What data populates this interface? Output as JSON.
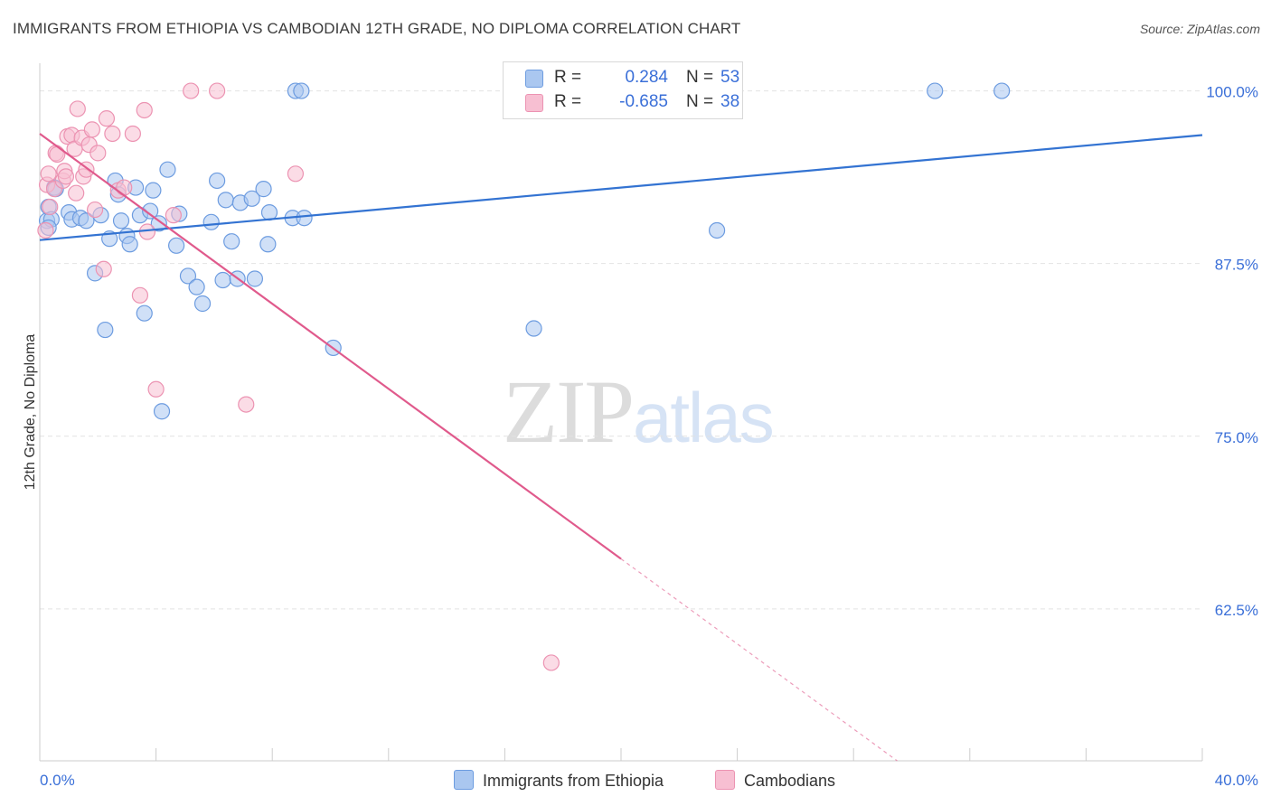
{
  "title": "IMMIGRANTS FROM ETHIOPIA VS CAMBODIAN 12TH GRADE, NO DIPLOMA CORRELATION CHART",
  "source": "Source: ZipAtlas.com",
  "watermark": {
    "zip": "ZIP",
    "atlas": "atlas"
  },
  "colors": {
    "blue_fill": "#aac7f0",
    "blue_stroke": "#6d9ce0",
    "blue_line": "#3373d2",
    "pink_fill": "#f7bfd2",
    "pink_stroke": "#ec93b2",
    "pink_line": "#e05a8c",
    "axis_text": "#3a6fd8",
    "grid": "#e2e2e2"
  },
  "legend": {
    "series": [
      {
        "r_label": "R =",
        "r_value": "0.284",
        "n_label": "N =",
        "n_value": "53"
      },
      {
        "r_label": "R =",
        "r_value": "-0.685",
        "n_label": "N =",
        "n_value": "38"
      }
    ]
  },
  "chart_data": {
    "type": "scatter",
    "title": "IMMIGRANTS FROM ETHIOPIA VS CAMBODIAN 12TH GRADE, NO DIPLOMA CORRELATION CHART",
    "xlabel": "",
    "ylabel": "12th Grade, No Diploma",
    "xlim": [
      0,
      40
    ],
    "ylim": [
      51.5,
      102
    ],
    "x_tick_labels": [
      "0.0%",
      "40.0%"
    ],
    "y_ticks": [
      62.5,
      75.0,
      87.5,
      100.0
    ],
    "y_tick_labels": [
      "62.5%",
      "75.0%",
      "87.5%",
      "100.0%"
    ],
    "grid": true,
    "legend_position": "bottom",
    "series": [
      {
        "name": "Immigrants from Ethiopia",
        "color": "#aac7f0",
        "r": 0.284,
        "n": 53,
        "trend": {
          "x": [
            0,
            40
          ],
          "y": [
            89.2,
            96.8
          ],
          "dash_from": null
        },
        "points": [
          [
            0.25,
            90.6
          ],
          [
            0.3,
            91.6
          ],
          [
            0.4,
            90.7
          ],
          [
            0.5,
            93.0
          ],
          [
            0.55,
            92.9
          ],
          [
            1.0,
            91.2
          ],
          [
            1.1,
            90.7
          ],
          [
            1.4,
            90.8
          ],
          [
            1.6,
            90.6
          ],
          [
            1.9,
            86.8
          ],
          [
            2.1,
            91.0
          ],
          [
            2.25,
            82.7
          ],
          [
            2.4,
            89.3
          ],
          [
            2.6,
            93.5
          ],
          [
            2.7,
            92.5
          ],
          [
            2.8,
            90.6
          ],
          [
            3.0,
            89.5
          ],
          [
            3.1,
            88.9
          ],
          [
            3.3,
            93.0
          ],
          [
            3.45,
            91.0
          ],
          [
            3.6,
            83.9
          ],
          [
            3.8,
            91.3
          ],
          [
            3.9,
            92.8
          ],
          [
            4.1,
            90.4
          ],
          [
            4.2,
            76.8
          ],
          [
            4.4,
            94.3
          ],
          [
            4.7,
            88.8
          ],
          [
            4.8,
            91.1
          ],
          [
            5.1,
            86.6
          ],
          [
            5.4,
            85.8
          ],
          [
            5.6,
            84.6
          ],
          [
            5.9,
            90.5
          ],
          [
            6.1,
            93.5
          ],
          [
            6.3,
            86.3
          ],
          [
            6.4,
            92.1
          ],
          [
            6.6,
            89.1
          ],
          [
            6.8,
            86.4
          ],
          [
            6.9,
            91.9
          ],
          [
            7.3,
            92.2
          ],
          [
            7.4,
            86.4
          ],
          [
            7.7,
            92.9
          ],
          [
            7.85,
            88.9
          ],
          [
            7.9,
            91.2
          ],
          [
            8.7,
            90.8
          ],
          [
            8.8,
            100.0
          ],
          [
            9.0,
            100.0
          ],
          [
            9.1,
            90.8
          ],
          [
            10.1,
            81.4
          ],
          [
            17.0,
            82.8
          ],
          [
            23.3,
            89.9
          ],
          [
            30.8,
            100.0
          ],
          [
            33.1,
            100.0
          ],
          [
            0.3,
            90.1
          ]
        ]
      },
      {
        "name": "Cambodians",
        "color": "#f7bfd2",
        "r": -0.685,
        "n": 38,
        "trend": {
          "x": [
            0,
            29.5
          ],
          "y": [
            96.9,
            51.5
          ],
          "dash_from": 20.0
        },
        "points": [
          [
            0.2,
            89.9
          ],
          [
            0.25,
            93.2
          ],
          [
            0.3,
            94.0
          ],
          [
            0.5,
            92.9
          ],
          [
            0.55,
            95.5
          ],
          [
            0.6,
            95.4
          ],
          [
            0.8,
            93.5
          ],
          [
            0.85,
            94.2
          ],
          [
            0.9,
            93.8
          ],
          [
            0.95,
            96.7
          ],
          [
            1.1,
            96.8
          ],
          [
            1.2,
            95.8
          ],
          [
            1.3,
            98.7
          ],
          [
            1.45,
            96.6
          ],
          [
            1.5,
            93.8
          ],
          [
            1.6,
            94.3
          ],
          [
            1.7,
            96.1
          ],
          [
            1.8,
            97.2
          ],
          [
            1.9,
            91.4
          ],
          [
            2.0,
            95.5
          ],
          [
            2.2,
            87.1
          ],
          [
            2.3,
            98.0
          ],
          [
            2.5,
            96.9
          ],
          [
            2.7,
            92.8
          ],
          [
            2.9,
            93.0
          ],
          [
            3.2,
            96.9
          ],
          [
            3.45,
            85.2
          ],
          [
            3.6,
            98.6
          ],
          [
            3.7,
            89.8
          ],
          [
            4.0,
            78.4
          ],
          [
            4.6,
            91.0
          ],
          [
            5.2,
            100.0
          ],
          [
            6.1,
            100.0
          ],
          [
            7.1,
            77.3
          ],
          [
            8.8,
            94.0
          ],
          [
            17.6,
            58.6
          ],
          [
            0.35,
            91.6
          ],
          [
            1.25,
            92.6
          ]
        ]
      }
    ]
  }
}
